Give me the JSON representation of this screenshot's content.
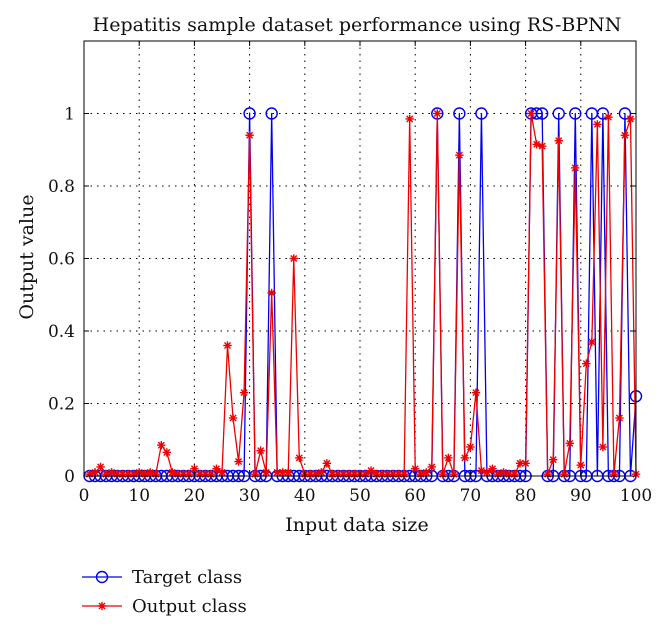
{
  "chart_data": {
    "type": "line",
    "title": "Hepatitis sample dataset performance using RS-BPNN",
    "xlabel": "Input data size",
    "ylabel": "Output value",
    "xlim": [
      0,
      100
    ],
    "ylim": [
      0,
      1.2
    ],
    "x_ticks": [
      "0",
      "10",
      "20",
      "30",
      "40",
      "50",
      "60",
      "70",
      "80",
      "90",
      "100"
    ],
    "y_ticks": [
      "0",
      "0.2",
      "0.4",
      "0.6",
      "0.8",
      "1"
    ],
    "grid": true,
    "legend_position": "below-left",
    "series": [
      {
        "name": "Target class",
        "color": "#0000ee",
        "marker": "circle",
        "x": [
          1,
          2,
          3,
          4,
          5,
          6,
          7,
          8,
          9,
          10,
          11,
          12,
          13,
          14,
          15,
          16,
          17,
          18,
          19,
          20,
          21,
          22,
          23,
          24,
          25,
          26,
          27,
          28,
          29,
          30,
          31,
          32,
          33,
          34,
          35,
          36,
          37,
          38,
          39,
          40,
          41,
          42,
          43,
          44,
          45,
          46,
          47,
          48,
          49,
          50,
          51,
          52,
          53,
          54,
          55,
          56,
          57,
          58,
          59,
          60,
          61,
          62,
          63,
          64,
          65,
          66,
          67,
          68,
          69,
          70,
          71,
          72,
          73,
          74,
          75,
          76,
          77,
          78,
          79,
          80,
          81,
          82,
          83,
          84,
          85,
          86,
          87,
          88,
          89,
          90,
          91,
          92,
          93,
          94,
          95,
          96,
          97,
          98,
          99,
          100
        ],
        "y": [
          0,
          0,
          0,
          0,
          0,
          0,
          0,
          0,
          0,
          0,
          0,
          0,
          0,
          0,
          0,
          0,
          0,
          0,
          0,
          0,
          0,
          0,
          0,
          0,
          0,
          0,
          0,
          0,
          0,
          1,
          0,
          0,
          0,
          1,
          0,
          0,
          0,
          0,
          0,
          0,
          0,
          0,
          0,
          0,
          0,
          0,
          0,
          0,
          0,
          0,
          0,
          0,
          0,
          0,
          0,
          0,
          0,
          0,
          0,
          0,
          0,
          0,
          0,
          1,
          0,
          0,
          0,
          1,
          0,
          0,
          0,
          1,
          0,
          0,
          0,
          0,
          0,
          0,
          0,
          0,
          1,
          1,
          1,
          0,
          0,
          1,
          0,
          0,
          1,
          0,
          0,
          1,
          0,
          1,
          0,
          0,
          0,
          1,
          0,
          0.22
        ]
      },
      {
        "name": "Output class",
        "color": "#ee0000",
        "marker": "star",
        "x": [
          1,
          2,
          3,
          4,
          5,
          6,
          7,
          8,
          9,
          10,
          11,
          12,
          13,
          14,
          15,
          16,
          17,
          18,
          19,
          20,
          21,
          22,
          23,
          24,
          25,
          26,
          27,
          28,
          29,
          30,
          31,
          32,
          33,
          34,
          35,
          36,
          37,
          38,
          39,
          40,
          41,
          42,
          43,
          44,
          45,
          46,
          47,
          48,
          49,
          50,
          51,
          52,
          53,
          54,
          55,
          56,
          57,
          58,
          59,
          60,
          61,
          62,
          63,
          64,
          65,
          66,
          67,
          68,
          69,
          70,
          71,
          72,
          73,
          74,
          75,
          76,
          77,
          78,
          79,
          80,
          81,
          82,
          83,
          84,
          85,
          86,
          87,
          88,
          89,
          90,
          91,
          92,
          93,
          94,
          95,
          96,
          97,
          98,
          99,
          100
        ],
        "y": [
          0.005,
          0.01,
          0.025,
          0.005,
          0.01,
          0.005,
          0.005,
          0.005,
          0.005,
          0.01,
          0.005,
          0.01,
          0.005,
          0.085,
          0.065,
          0.01,
          0.005,
          0.005,
          0.005,
          0.02,
          0.005,
          0.005,
          0.005,
          0.02,
          0.01,
          0.36,
          0.16,
          0.04,
          0.23,
          0.94,
          0.005,
          0.07,
          0.01,
          0.505,
          0.01,
          0.01,
          0.01,
          0.6,
          0.05,
          0.005,
          0.005,
          0.005,
          0.01,
          0.035,
          0.005,
          0.005,
          0.005,
          0.005,
          0.005,
          0.005,
          0.005,
          0.015,
          0.005,
          0.005,
          0.005,
          0.005,
          0.005,
          0.005,
          0.985,
          0.02,
          0.005,
          0.01,
          0.025,
          1.0,
          0.005,
          0.05,
          0.005,
          0.885,
          0.05,
          0.08,
          0.23,
          0.015,
          0.01,
          0.02,
          0.005,
          0.01,
          0.005,
          0.005,
          0.035,
          0.035,
          1.0,
          0.915,
          0.91,
          0.005,
          0.045,
          0.925,
          0.005,
          0.09,
          0.85,
          0.03,
          0.31,
          0.37,
          0.97,
          0.08,
          0.99,
          0.005,
          0.16,
          0.94,
          0.985,
          0.005
        ]
      }
    ]
  }
}
